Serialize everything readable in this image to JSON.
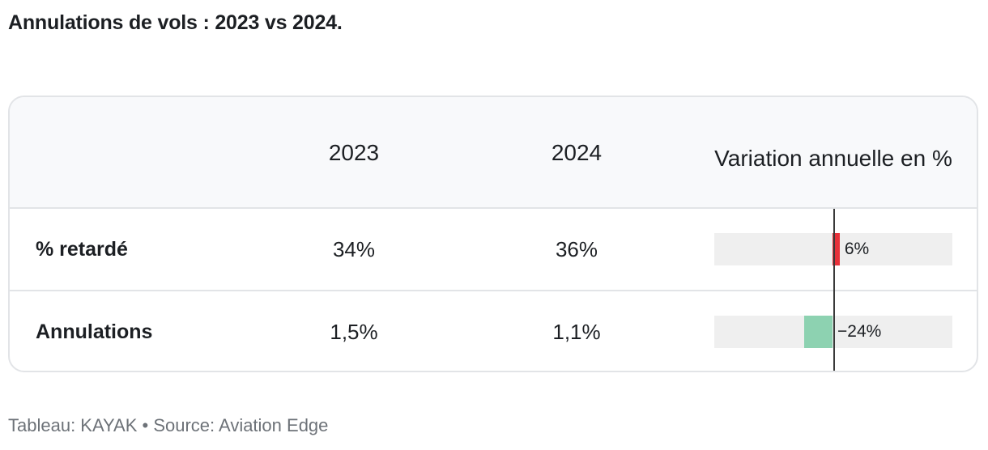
{
  "title": "Annulations de vols : 2023 vs 2024.",
  "footer": "Tableau: KAYAK • Source: Aviation Edge",
  "chart_data": {
    "type": "table",
    "columns": [
      "",
      "2023",
      "2024",
      "Variation annuelle en %"
    ],
    "rows": [
      {
        "label": "% retardé",
        "v2023": "34%",
        "v2024": "36%",
        "change": 6,
        "change_label": "6%",
        "color": "#e8313a"
      },
      {
        "label": "Annulations",
        "v2023": "1,5%",
        "v2024": "1,1%",
        "change": -24,
        "change_label": "−24%",
        "color": "#8dd2b1"
      }
    ],
    "bar_range": [
      -100,
      100
    ],
    "colors": {
      "positive": "#e8313a",
      "negative": "#8dd2b1",
      "track": "#efefef"
    }
  }
}
